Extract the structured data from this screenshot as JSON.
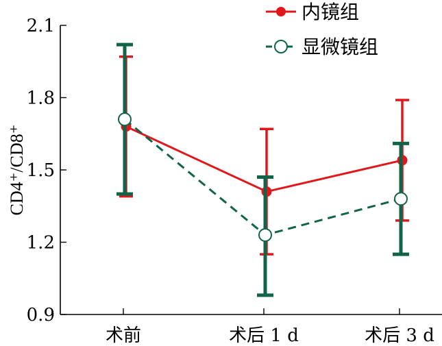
{
  "chart_data": {
    "type": "line",
    "categories": [
      "术前",
      "术后 1 d",
      "术后 3 d"
    ],
    "ylabel": "CD4⁺/CD8⁺",
    "ylim": [
      0.9,
      2.1
    ],
    "yticks": [
      "0.9",
      "1.2",
      "1.5",
      "1.8",
      "2.1"
    ],
    "legend_position": "top-right",
    "grid": false,
    "series": [
      {
        "name": "内镜组",
        "color": "#e0181b",
        "line_style": "solid",
        "marker": "filled-circle",
        "values": [
          1.68,
          1.41,
          1.54
        ],
        "error_low": [
          1.39,
          1.15,
          1.29
        ],
        "error_high": [
          1.97,
          1.67,
          1.79
        ]
      },
      {
        "name": "显微镜组",
        "color": "#116349",
        "line_style": "dashed",
        "marker": "open-circle",
        "values": [
          1.71,
          1.23,
          1.38
        ],
        "error_low": [
          1.4,
          0.98,
          1.15
        ],
        "error_high": [
          2.02,
          1.47,
          1.61
        ]
      }
    ]
  }
}
